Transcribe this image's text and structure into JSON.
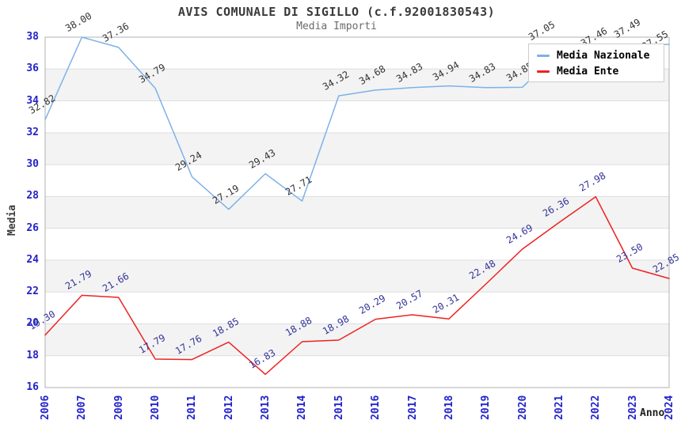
{
  "title": "AVIS COMUNALE DI SIGILLO (c.f.92001830543)",
  "subtitle": "Media Importi",
  "chart_data": {
    "type": "line",
    "x": [
      "2006",
      "2007",
      "2009",
      "2010",
      "2011",
      "2012",
      "2013",
      "2014",
      "2015",
      "2016",
      "2017",
      "2018",
      "2019",
      "2020",
      "2021",
      "2022",
      "2023",
      "2024"
    ],
    "xlabel": "Anno",
    "ylabel": "Media",
    "ylim": [
      16,
      38
    ],
    "ytick_step": 2,
    "grid": "horizontal-bands-alternating",
    "legend_position": "top-right",
    "band_color": "#f3f3f3",
    "tick_color": "#2222cc",
    "series": [
      {
        "name": "Media Nazionale",
        "color": "#7cb2e8",
        "label_color": "#333333",
        "values": [
          32.82,
          38.0,
          37.36,
          34.79,
          29.24,
          27.19,
          29.43,
          27.71,
          34.32,
          34.68,
          34.83,
          34.94,
          34.83,
          34.85,
          37.05,
          37.46,
          37.49,
          37.55
        ]
      },
      {
        "name": "Media Ente",
        "color": "#ee2222",
        "label_color": "#333399",
        "values": [
          19.3,
          21.79,
          21.66,
          17.79,
          17.76,
          18.85,
          16.83,
          18.88,
          18.98,
          20.29,
          20.57,
          20.31,
          22.48,
          24.69,
          26.36,
          27.98,
          23.5,
          22.85
        ]
      }
    ]
  }
}
